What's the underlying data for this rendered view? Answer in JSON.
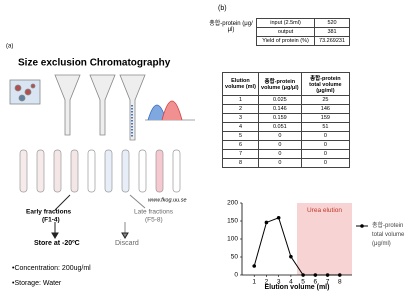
{
  "panel_a": {
    "label": "(a)",
    "title": "Size exclusion Chromatography",
    "url": "www.fkog.uu.se",
    "early_fractions": "Early fractions",
    "early_range": "(F1-4)",
    "late_fractions": "Late fractions",
    "late_range": "(F5-8)",
    "store": "Store at -20ºC",
    "discard": "Discard",
    "notes": [
      "•Concentration: 200ug/ml",
      "•Storage: Water"
    ]
  },
  "panel_b": {
    "label": "(b)",
    "summary_label": "총합-protein (μg/μl)",
    "summary_rows": [
      [
        "input (2.5ml)",
        "520"
      ],
      [
        "output",
        "381"
      ],
      [
        "Yield of protein (%)",
        "73.269231"
      ]
    ],
    "elution_table": {
      "header": [
        "Elution volume (ml)",
        "총합-protein volume (μg/μl)",
        "총합-protein total volume (μg/ml)"
      ],
      "rows": [
        [
          "1",
          "0.025",
          "25"
        ],
        [
          "2",
          "0.146",
          "146"
        ],
        [
          "3",
          "0.159",
          "159"
        ],
        [
          "4",
          "0.051",
          "51"
        ],
        [
          "5",
          "0",
          "0"
        ],
        [
          "6",
          "0",
          "0"
        ],
        [
          "7",
          "0",
          "0"
        ],
        [
          "8",
          "0",
          "0"
        ]
      ]
    }
  },
  "chart_data": {
    "type": "line",
    "x": [
      1,
      2,
      3,
      4,
      5,
      6,
      7,
      8
    ],
    "series": [
      {
        "name": "총합-protein total volume (μg/ml)",
        "color": "#000000",
        "values": [
          25,
          146,
          159,
          51,
          0,
          0,
          0,
          0
        ]
      }
    ],
    "xlim": [
      0,
      9
    ],
    "xticks": [
      1,
      2,
      3,
      4,
      5,
      6,
      7,
      8
    ],
    "ylim": [
      0,
      200
    ],
    "yticks": [
      0,
      50,
      100,
      150,
      200
    ],
    "x_label": "Elution volume (ml)",
    "legend": "right",
    "annotations": [
      {
        "text": "Urea elution",
        "x_range": [
          4.5,
          9
        ],
        "color": "#f7d3d3",
        "text_color": "#c0392b"
      }
    ]
  }
}
